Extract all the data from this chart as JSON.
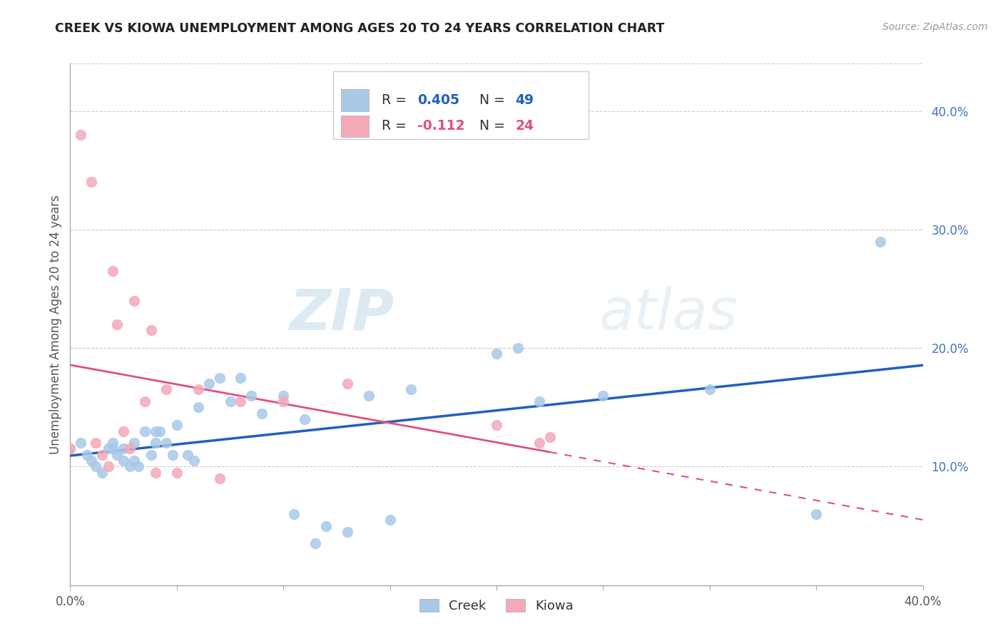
{
  "title": "CREEK VS KIOWA UNEMPLOYMENT AMONG AGES 20 TO 24 YEARS CORRELATION CHART",
  "source": "Source: ZipAtlas.com",
  "ylabel": "Unemployment Among Ages 20 to 24 years",
  "xlim": [
    0.0,
    0.4
  ],
  "ylim": [
    0.0,
    0.44
  ],
  "y_tick_vals_right": [
    0.1,
    0.2,
    0.3,
    0.4
  ],
  "y_tick_labels_right": [
    "10.0%",
    "20.0%",
    "30.0%",
    "40.0%"
  ],
  "creek_color": "#a8c8e8",
  "kiowa_color": "#f4a8b8",
  "creek_line_color": "#2060c0",
  "kiowa_line_color": "#e05080",
  "creek_R": 0.405,
  "creek_N": 49,
  "kiowa_R": -0.112,
  "kiowa_N": 24,
  "legend_label_creek": "Creek",
  "legend_label_kiowa": "Kiowa",
  "watermark_zip": "ZIP",
  "watermark_atlas": "atlas",
  "background_color": "#ffffff",
  "creek_x": [
    0.0,
    0.005,
    0.008,
    0.01,
    0.012,
    0.015,
    0.018,
    0.02,
    0.02,
    0.022,
    0.025,
    0.025,
    0.028,
    0.03,
    0.03,
    0.032,
    0.035,
    0.038,
    0.04,
    0.04,
    0.042,
    0.045,
    0.048,
    0.05,
    0.055,
    0.058,
    0.06,
    0.065,
    0.07,
    0.075,
    0.08,
    0.085,
    0.09,
    0.1,
    0.105,
    0.11,
    0.115,
    0.12,
    0.13,
    0.14,
    0.15,
    0.16,
    0.2,
    0.21,
    0.22,
    0.25,
    0.3,
    0.35,
    0.38
  ],
  "creek_y": [
    0.115,
    0.12,
    0.11,
    0.105,
    0.1,
    0.095,
    0.115,
    0.115,
    0.12,
    0.11,
    0.105,
    0.115,
    0.1,
    0.12,
    0.105,
    0.1,
    0.13,
    0.11,
    0.13,
    0.12,
    0.13,
    0.12,
    0.11,
    0.135,
    0.11,
    0.105,
    0.15,
    0.17,
    0.175,
    0.155,
    0.175,
    0.16,
    0.145,
    0.16,
    0.06,
    0.14,
    0.035,
    0.05,
    0.045,
    0.16,
    0.055,
    0.165,
    0.195,
    0.2,
    0.155,
    0.16,
    0.165,
    0.06,
    0.29
  ],
  "kiowa_x": [
    0.0,
    0.005,
    0.01,
    0.012,
    0.015,
    0.018,
    0.02,
    0.022,
    0.025,
    0.028,
    0.03,
    0.035,
    0.038,
    0.04,
    0.045,
    0.05,
    0.06,
    0.07,
    0.08,
    0.1,
    0.13,
    0.2,
    0.22,
    0.225
  ],
  "kiowa_y": [
    0.115,
    0.38,
    0.34,
    0.12,
    0.11,
    0.1,
    0.265,
    0.22,
    0.13,
    0.115,
    0.24,
    0.155,
    0.215,
    0.095,
    0.165,
    0.095,
    0.165,
    0.09,
    0.155,
    0.155,
    0.17,
    0.135,
    0.12,
    0.125
  ]
}
